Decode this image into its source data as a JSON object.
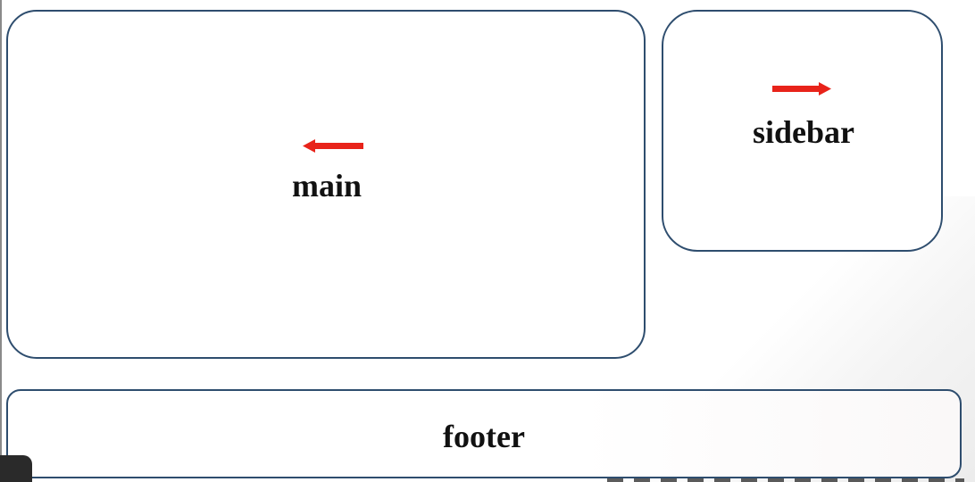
{
  "diagram": {
    "main": {
      "label": "main",
      "arrow_direction": "left"
    },
    "sidebar": {
      "label": "sidebar",
      "arrow_direction": "right"
    },
    "footer": {
      "label": "footer"
    }
  },
  "colors": {
    "border": "#2e4d6e",
    "arrow": "#e8231a",
    "text": "#111111",
    "background": "#ffffff"
  }
}
